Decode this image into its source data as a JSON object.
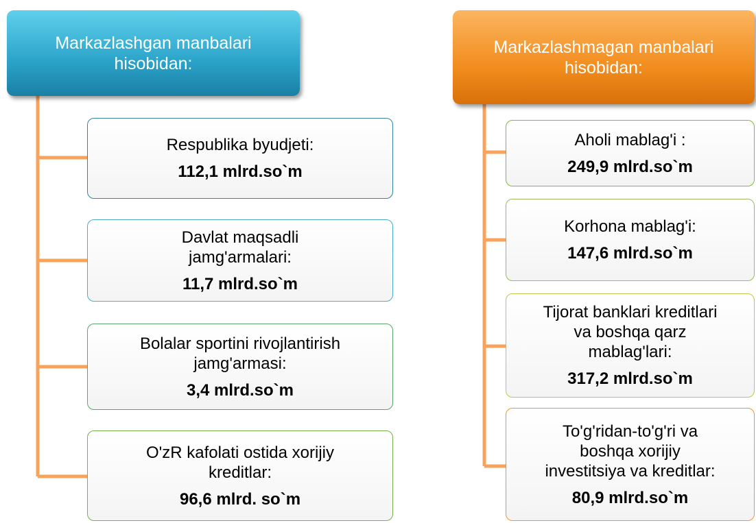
{
  "left": {
    "header": [
      "Markazlashgan manbalari",
      "hisobidan:"
    ],
    "boxes": [
      {
        "lines": [
          "Respublika byudjeti:"
        ],
        "value": "112,1 mlrd.so`m"
      },
      {
        "lines": [
          "Davlat maqsadli",
          "jamg'armalari:"
        ],
        "value": "11,7 mlrd.so`m"
      },
      {
        "lines": [
          "Bolalar sportini rivojlantirish",
          "jamg'armasi:"
        ],
        "value": "3,4 mlrd.so`m"
      },
      {
        "lines": [
          "O'zR kafolati ostida xorijiy",
          "kreditlar:"
        ],
        "value": "96,6 mlrd. so`m"
      }
    ]
  },
  "right": {
    "header": [
      "Markazlashmagan manbalari",
      "hisobidan:"
    ],
    "boxes": [
      {
        "lines": [
          "Aholi mablag'i :"
        ],
        "value": "249,9 mlrd.so`m"
      },
      {
        "lines": [
          "Korhona mablag'i:"
        ],
        "value": "147,6 mlrd.so`m"
      },
      {
        "lines": [
          "Tijorat banklari kreditlari",
          "va boshqa qarz",
          "mablag'lari:"
        ],
        "value": "317,2 mlrd.so`m"
      },
      {
        "lines": [
          "To'g'ridan-to'g'ri va",
          "boshqa xorijiy",
          "investitsiya va kreditlar:"
        ],
        "value": "80,9 mlrd.so`m"
      }
    ]
  }
}
